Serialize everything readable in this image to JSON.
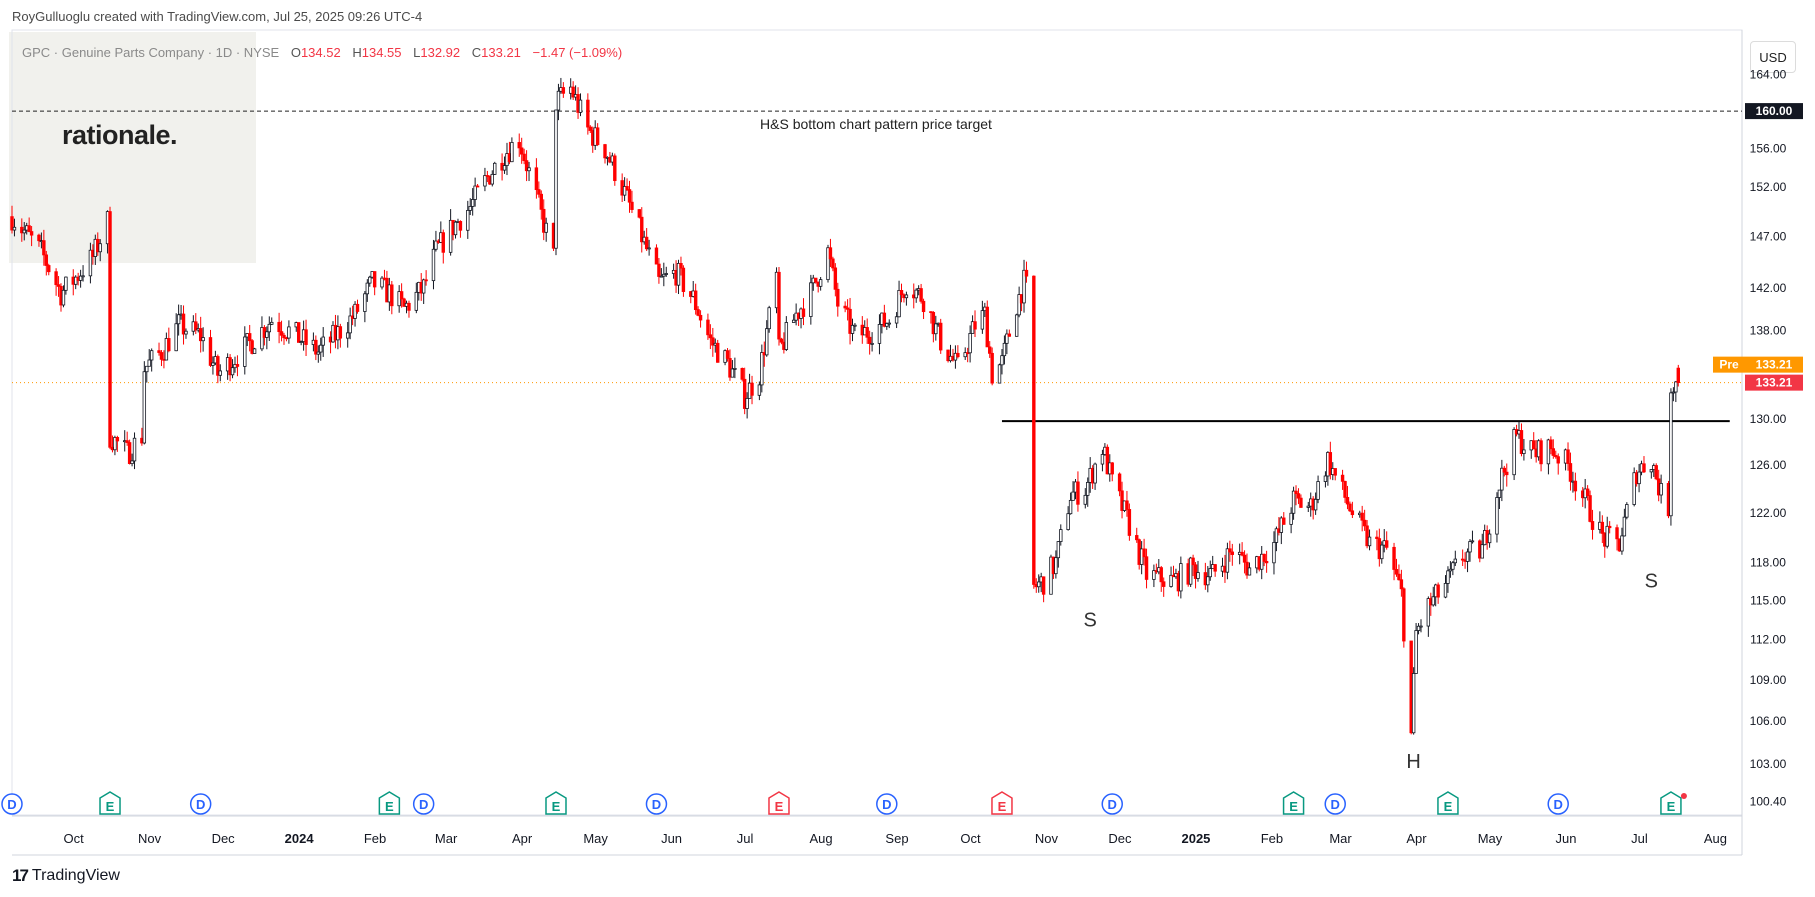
{
  "header": {
    "credit": "RoyGulluoglu created with TradingView.com, Jul 25, 2025 09:26 UTC-4"
  },
  "legend": {
    "symbol": "GPC · Genuine Parts Company · 1D · NYSE",
    "open_label": "O",
    "open": "134.52",
    "high_label": "H",
    "high": "134.55",
    "low_label": "L",
    "low": "132.92",
    "close_label": "C",
    "close": "133.21",
    "change": "−1.47 (−1.09%)"
  },
  "watermark": "rationale.",
  "currency": "USD",
  "footer": {
    "brand": "TradingView",
    "brand_mark": "17"
  },
  "colors": {
    "up": "#089981",
    "down": "#f23645",
    "premarket": "#ff9800",
    "last": "#f23645",
    "line": "#000000"
  },
  "chart_data": {
    "type": "candlestick",
    "symbol": "GPC",
    "interval": "1D",
    "y_scale": "log",
    "ylim": [
      99.5,
      169
    ],
    "y_ticks": [
      "164.00",
      "160.00",
      "156.00",
      "152.00",
      "147.00",
      "142.00",
      "138.00",
      "133.21",
      "130.00",
      "126.00",
      "122.00",
      "118.00",
      "115.00",
      "112.00",
      "109.00",
      "106.00",
      "103.00",
      "100.40"
    ],
    "x_ticks": [
      "Oct",
      "Nov",
      "Dec",
      "2024",
      "Feb",
      "Mar",
      "Apr",
      "May",
      "Jun",
      "Jul",
      "Aug",
      "Sep",
      "Oct",
      "Nov",
      "Dec",
      "2025",
      "Feb",
      "Mar",
      "Apr",
      "May",
      "Jun",
      "Jul",
      "Aug"
    ],
    "x_range": [
      "2023-09-14",
      "2025-08-20"
    ],
    "last_price": "133.21",
    "premarket_label": "Pre",
    "premarket_price": "133.21",
    "target_price_label": "160.00",
    "annotations": {
      "target_line_text": "H&S bottom chart pattern price target",
      "target_price": 160.0,
      "neckline_price": 129.8,
      "neckline_from": "2024-10-22",
      "neckline_to": "2025-08-15",
      "left_shoulder": "S",
      "head": "H",
      "right_shoulder": "S",
      "left_shoulder_date": "2024-11-27",
      "left_shoulder_price": 113.0,
      "head_date": "2025-04-08",
      "head_price": 102.7,
      "right_shoulder_date": "2025-07-14",
      "right_shoulder_price": 116.0
    },
    "events": [
      {
        "type": "D",
        "date": "2023-09-14"
      },
      {
        "type": "E",
        "date": "2023-10-24"
      },
      {
        "type": "D",
        "date": "2023-11-30"
      },
      {
        "type": "E",
        "date": "2024-02-15"
      },
      {
        "type": "D",
        "date": "2024-02-29"
      },
      {
        "type": "E",
        "date": "2024-04-23"
      },
      {
        "type": "D",
        "date": "2024-06-03"
      },
      {
        "type": "E",
        "date": "2024-07-23",
        "negative": true
      },
      {
        "type": "D",
        "date": "2024-09-05"
      },
      {
        "type": "E",
        "date": "2024-10-22",
        "negative": true
      },
      {
        "type": "D",
        "date": "2024-12-06"
      },
      {
        "type": "E",
        "date": "2025-02-18"
      },
      {
        "type": "D",
        "date": "2025-03-07"
      },
      {
        "type": "E",
        "date": "2025-04-22"
      },
      {
        "type": "D",
        "date": "2025-06-06"
      },
      {
        "type": "E",
        "date": "2025-07-22"
      }
    ],
    "path_points": [
      [
        "2023-09-14",
        149.0
      ],
      [
        "2023-09-26",
        145.5
      ],
      [
        "2023-10-04",
        141.5
      ],
      [
        "2023-10-10",
        143.0
      ],
      [
        "2023-10-17",
        145.0
      ],
      [
        "2023-10-23",
        148.5
      ],
      [
        "2023-10-24",
        128.5
      ],
      [
        "2023-10-31",
        127.0
      ],
      [
        "2023-11-06",
        128.5
      ],
      [
        "2023-11-07",
        134.5
      ],
      [
        "2023-11-14",
        136.0
      ],
      [
        "2023-11-21",
        138.5
      ],
      [
        "2023-11-30",
        137.5
      ],
      [
        "2023-12-07",
        134.0
      ],
      [
        "2023-12-14",
        135.5
      ],
      [
        "2023-12-21",
        137.0
      ],
      [
        "2023-12-29",
        139.0
      ],
      [
        "2024-01-08",
        137.5
      ],
      [
        "2024-01-17",
        136.0
      ],
      [
        "2024-01-24",
        137.5
      ],
      [
        "2024-02-01",
        139.5
      ],
      [
        "2024-02-08",
        142.5
      ],
      [
        "2024-02-15",
        141.5
      ],
      [
        "2024-02-21",
        140.0
      ],
      [
        "2024-02-29",
        142.0
      ],
      [
        "2024-03-05",
        145.5
      ],
      [
        "2024-03-12",
        148.0
      ],
      [
        "2024-03-19",
        150.0
      ],
      [
        "2024-03-26",
        153.0
      ],
      [
        "2024-04-02",
        155.5
      ],
      [
        "2024-04-08",
        157.0
      ],
      [
        "2024-04-12",
        153.5
      ],
      [
        "2024-04-16",
        150.0
      ],
      [
        "2024-04-22",
        145.0
      ],
      [
        "2024-04-23",
        161.0
      ],
      [
        "2024-04-29",
        162.5
      ],
      [
        "2024-05-06",
        158.0
      ],
      [
        "2024-05-13",
        156.0
      ],
      [
        "2024-05-20",
        152.0
      ],
      [
        "2024-05-28",
        147.0
      ],
      [
        "2024-06-04",
        142.5
      ],
      [
        "2024-06-11",
        143.5
      ],
      [
        "2024-06-18",
        141.0
      ],
      [
        "2024-06-25",
        137.0
      ],
      [
        "2024-07-02",
        135.0
      ],
      [
        "2024-07-09",
        132.0
      ],
      [
        "2024-07-15",
        134.0
      ],
      [
        "2024-07-22",
        143.0
      ],
      [
        "2024-07-23",
        136.0
      ],
      [
        "2024-07-30",
        139.5
      ],
      [
        "2024-08-05",
        141.5
      ],
      [
        "2024-08-12",
        145.5
      ],
      [
        "2024-08-16",
        140.5
      ],
      [
        "2024-08-23",
        137.5
      ],
      [
        "2024-08-30",
        138.0
      ],
      [
        "2024-09-06",
        139.0
      ],
      [
        "2024-09-13",
        142.5
      ],
      [
        "2024-09-20",
        141.0
      ],
      [
        "2024-09-27",
        137.0
      ],
      [
        "2024-10-04",
        134.5
      ],
      [
        "2024-10-11",
        138.5
      ],
      [
        "2024-10-15",
        139.5
      ],
      [
        "2024-10-18",
        134.0
      ],
      [
        "2024-10-22",
        135.0
      ],
      [
        "2024-10-28",
        140.5
      ],
      [
        "2024-10-31",
        142.5
      ],
      [
        "2024-11-01",
        142.0
      ],
      [
        "2024-11-04",
        116.0
      ],
      [
        "2024-11-08",
        116.5
      ],
      [
        "2024-11-13",
        118.0
      ],
      [
        "2024-11-19",
        123.5
      ],
      [
        "2024-11-25",
        124.0
      ],
      [
        "2024-12-02",
        127.5
      ],
      [
        "2024-12-06",
        124.5
      ],
      [
        "2024-12-13",
        121.0
      ],
      [
        "2024-12-20",
        117.0
      ],
      [
        "2024-12-31",
        116.5
      ],
      [
        "2025-01-08",
        117.5
      ],
      [
        "2025-01-16",
        117.0
      ],
      [
        "2025-01-24",
        119.0
      ],
      [
        "2025-01-31",
        117.5
      ],
      [
        "2025-02-10",
        119.5
      ],
      [
        "2025-02-18",
        123.0
      ],
      [
        "2025-02-25",
        122.5
      ],
      [
        "2025-03-04",
        126.5
      ],
      [
        "2025-03-07",
        125.0
      ],
      [
        "2025-03-14",
        122.0
      ],
      [
        "2025-03-21",
        119.5
      ],
      [
        "2025-03-28",
        119.0
      ],
      [
        "2025-04-03",
        115.5
      ],
      [
        "2025-04-07",
        105.0
      ],
      [
        "2025-04-09",
        112.5
      ],
      [
        "2025-04-14",
        114.5
      ],
      [
        "2025-04-22",
        116.5
      ],
      [
        "2025-04-28",
        118.5
      ],
      [
        "2025-05-06",
        119.0
      ],
      [
        "2025-05-13",
        124.5
      ],
      [
        "2025-05-20",
        128.5
      ],
      [
        "2025-05-27",
        127.0
      ],
      [
        "2025-06-03",
        127.5
      ],
      [
        "2025-06-10",
        126.0
      ],
      [
        "2025-06-17",
        123.0
      ],
      [
        "2025-06-24",
        120.0
      ],
      [
        "2025-07-01",
        119.5
      ],
      [
        "2025-07-08",
        125.5
      ],
      [
        "2025-07-14",
        126.5
      ],
      [
        "2025-07-18",
        123.5
      ],
      [
        "2025-07-21",
        122.5
      ],
      [
        "2025-07-22",
        133.0
      ],
      [
        "2025-07-25",
        133.21
      ]
    ]
  }
}
